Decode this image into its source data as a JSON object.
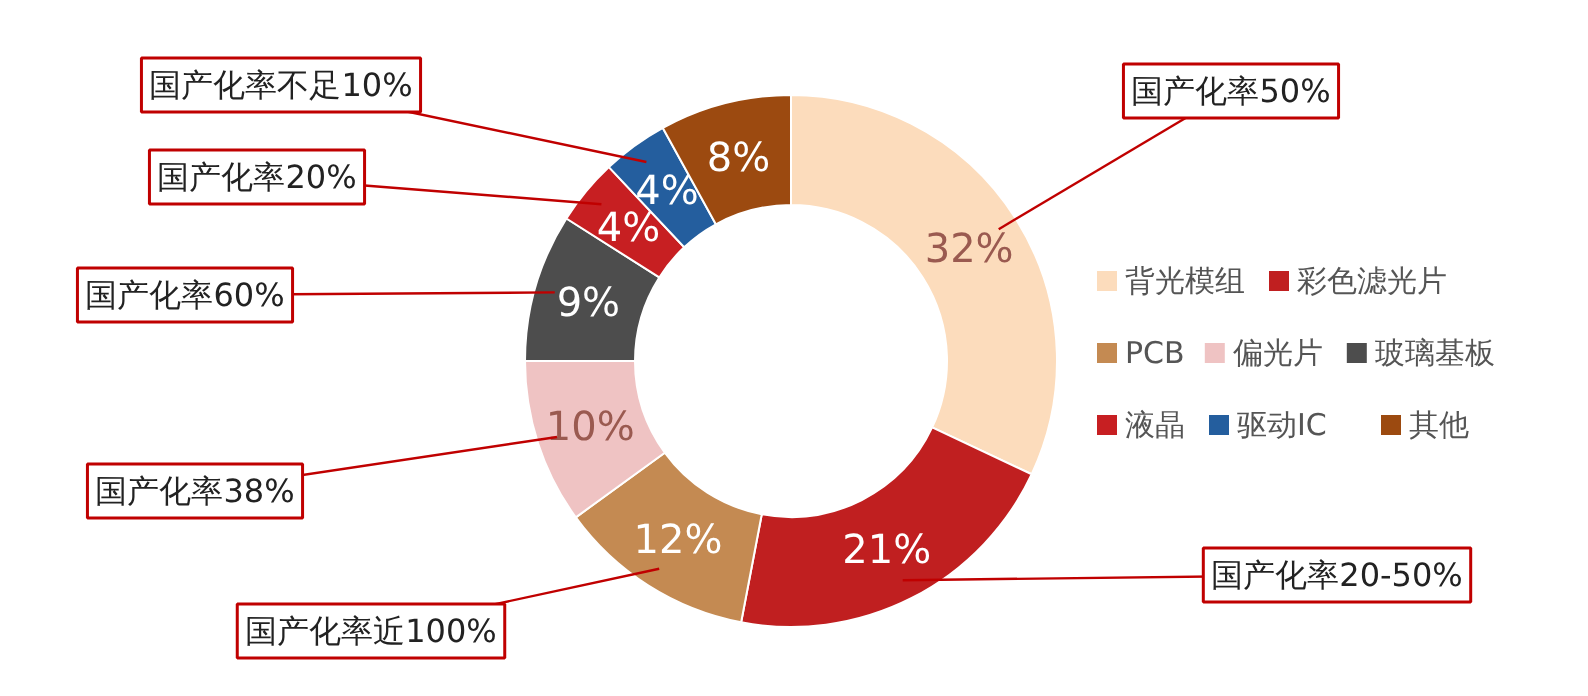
{
  "chart_data": {
    "type": "donut",
    "categories": [
      "背光模组",
      "彩色滤光片",
      "PCB",
      "偏光片",
      "玻璃基板",
      "液晶",
      "驱动IC",
      "其他"
    ],
    "values": [
      32,
      21,
      12,
      10,
      9,
      4,
      4,
      8
    ],
    "colors": [
      "#fcdcbc",
      "#c01f20",
      "#c48a52",
      "#efc3c3",
      "#4d4d4d",
      "#c71f22",
      "#245e9e",
      "#9c4a10"
    ],
    "value_labels": [
      "32%",
      "21%",
      "12%",
      "10%",
      "9%",
      "4%",
      "4%",
      "8%"
    ],
    "annotations": [
      "国产化率50%",
      "国产化率20-50%",
      "国产化率近100%",
      "国产化率38%",
      "国产化率60%",
      "国产化率20%",
      "国产化率不足10%"
    ],
    "legend": "right"
  }
}
